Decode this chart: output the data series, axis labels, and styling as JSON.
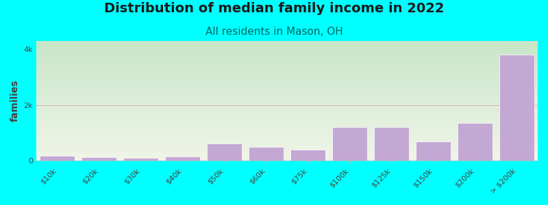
{
  "title": "Distribution of median family income in 2022",
  "subtitle": "All residents in Mason, OH",
  "ylabel": "families",
  "background_color": "#00FFFF",
  "plot_bg_gradient_top": "#c8e6c8",
  "plot_bg_gradient_bottom": "#f0f5e8",
  "bar_color": "#c4a8d4",
  "bar_edge_color": "#ffffff",
  "categories": [
    "$10k",
    "$20k",
    "$30k",
    "$40k",
    "$50k",
    "$60k",
    "$75k",
    "$100k",
    "$125k",
    "$150k",
    "$200k",
    "> $200k"
  ],
  "values": [
    190,
    140,
    110,
    160,
    620,
    490,
    390,
    1200,
    1200,
    700,
    1350,
    3800
  ],
  "ylim": [
    0,
    4300
  ],
  "yticks": [
    0,
    2000,
    4000
  ],
  "ytick_labels": [
    "0",
    "2k",
    "4k"
  ],
  "title_fontsize": 14,
  "subtitle_fontsize": 11,
  "subtitle_color": "#006666",
  "ylabel_fontsize": 10,
  "tick_fontsize": 8,
  "grid_color": "#ddaaaa",
  "figsize": [
    8.0,
    3.0
  ],
  "dpi": 100
}
